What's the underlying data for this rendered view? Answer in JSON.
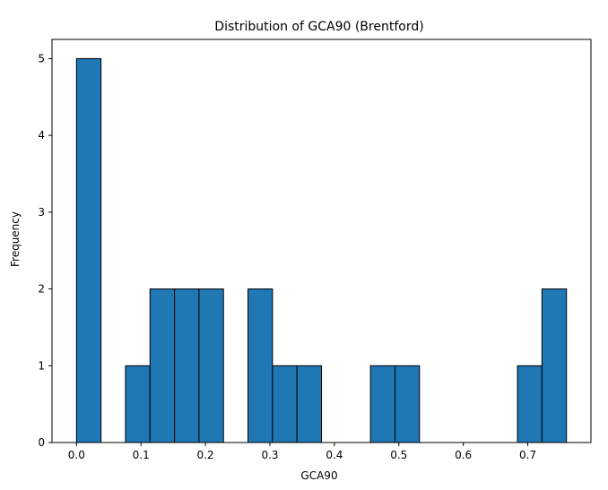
{
  "chart_data": {
    "type": "bar",
    "title": "Distribution of GCA90 (Brentford)",
    "xlabel": "GCA90",
    "ylabel": "Frequency",
    "xlim": [
      -0.038,
      0.798
    ],
    "ylim": [
      0,
      5.25
    ],
    "xticks": [
      "0.0",
      "0.1",
      "0.2",
      "0.3",
      "0.4",
      "0.5",
      "0.6",
      "0.7"
    ],
    "xtick_values": [
      0.0,
      0.1,
      0.2,
      0.3,
      0.4,
      0.5,
      0.6,
      0.7
    ],
    "yticks": [
      "0",
      "1",
      "2",
      "3",
      "4",
      "5"
    ],
    "ytick_values": [
      0,
      1,
      2,
      3,
      4,
      5
    ],
    "bin_edges": [
      0.0,
      0.038,
      0.076,
      0.114,
      0.152,
      0.19,
      0.228,
      0.266,
      0.304,
      0.342,
      0.38,
      0.418,
      0.456,
      0.494,
      0.532,
      0.57,
      0.608,
      0.646,
      0.684,
      0.722,
      0.76
    ],
    "values": [
      5,
      0,
      1,
      2,
      2,
      2,
      0,
      2,
      1,
      1,
      0,
      0,
      1,
      1,
      0,
      0,
      0,
      0,
      1,
      2
    ],
    "bar_color": "#1f77b4",
    "edge_color": "#000000",
    "grid": false,
    "legend": "none"
  }
}
